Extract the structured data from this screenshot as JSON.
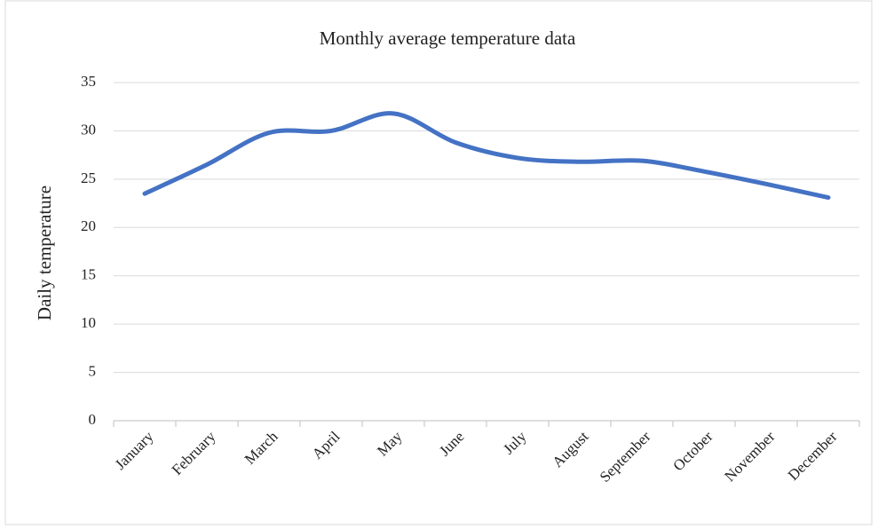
{
  "chart_data": {
    "type": "line",
    "title": "Monthly average temperature data",
    "y_label": "Daily temperature",
    "categories": [
      "January",
      "February",
      "March",
      "April",
      "May",
      "June",
      "July",
      "August",
      "September",
      "October",
      "November",
      "December"
    ],
    "series": [
      {
        "name": "Daily temperature",
        "color": "#4472c4",
        "values": [
          23.5,
          26.5,
          29.8,
          30.0,
          31.8,
          28.8,
          27.2,
          26.8,
          26.9,
          25.8,
          24.5,
          23.1
        ]
      }
    ],
    "ylim": [
      0,
      35
    ],
    "yticks": [
      0,
      5,
      10,
      15,
      20,
      25,
      30,
      35
    ],
    "grid": true,
    "smooth": true
  }
}
